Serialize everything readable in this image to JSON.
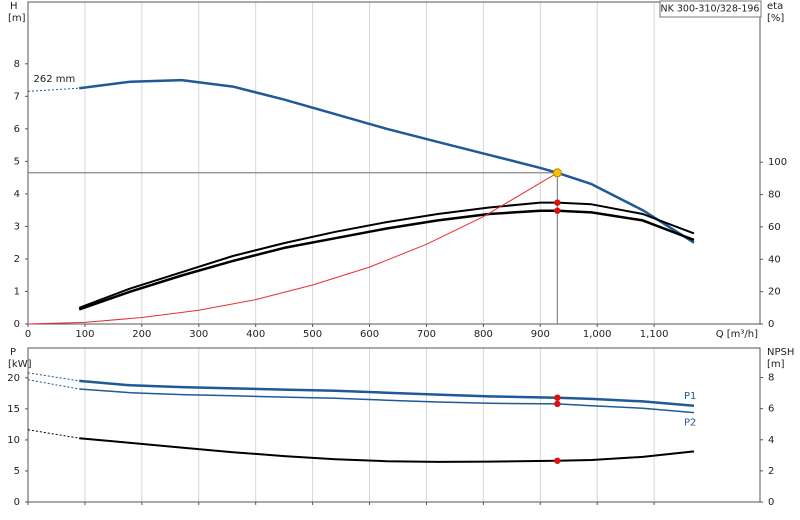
{
  "chart_data": [
    {
      "type": "line",
      "title": "NK 300-310/328-196",
      "y_label": "H",
      "y_unit": "[m]",
      "y2_label": "eta",
      "y2_unit": "[%]",
      "x_label": "Q [m³/h]",
      "xlim": [
        0,
        1286
      ],
      "ylim": [
        0,
        9.9
      ],
      "y2lim": [
        0,
        199
      ],
      "xticks": [
        0,
        100,
        200,
        300,
        400,
        500,
        600,
        700,
        800,
        900,
        {
          "value": 1000,
          "label": "1,000"
        },
        {
          "value": 1100,
          "label": "1,100"
        }
      ],
      "yticks": [
        0,
        1,
        2,
        3,
        4,
        5,
        6,
        7,
        8
      ],
      "y2ticks": [
        0,
        20,
        40,
        60,
        80,
        100
      ],
      "grid": true,
      "series": [
        {
          "color": "#1f5a96",
          "dashed": true,
          "x": [
            0,
            90
          ],
          "values": [
            7.15,
            7.25
          ]
        },
        {
          "name": "262 mm",
          "label_side": "start",
          "color": "#1f5a96",
          "width": 2.5,
          "x": [
            90,
            180,
            270,
            360,
            450,
            540,
            630,
            720,
            810,
            900,
            930,
            990,
            1080,
            1170
          ],
          "values": [
            7.25,
            7.45,
            7.5,
            7.3,
            6.9,
            6.45,
            6.0,
            5.6,
            5.2,
            4.8,
            4.65,
            4.3,
            3.5,
            2.5
          ]
        },
        {
          "color": "#000000",
          "width": 2,
          "axis": "y2",
          "x": [
            90,
            180,
            270,
            360,
            450,
            540,
            630,
            720,
            810,
            900,
            930,
            990,
            1080,
            1170
          ],
          "values": [
            10,
            22,
            32,
            42,
            50,
            57,
            63,
            68,
            72,
            75,
            75,
            74,
            68,
            56
          ]
        },
        {
          "color": "#000000",
          "width": 2.5,
          "axis": "y2",
          "x": [
            90,
            180,
            270,
            360,
            450,
            540,
            630,
            720,
            810,
            900,
            930,
            990,
            1080,
            1170
          ],
          "values": [
            9,
            20,
            30,
            39,
            47,
            53,
            59,
            64,
            68,
            70,
            70,
            69,
            64,
            52
          ]
        },
        {
          "color": "#e83030",
          "width": 1,
          "x": [
            0,
            100,
            200,
            300,
            400,
            500,
            600,
            700,
            800,
            930
          ],
          "values": [
            0,
            0.05,
            0.2,
            0.42,
            0.75,
            1.2,
            1.75,
            2.45,
            3.3,
            4.65
          ]
        }
      ],
      "operating_point": {
        "x": 930,
        "value": 4.65,
        "color": "#f5c400"
      },
      "markers": [
        {
          "x": 930,
          "value": 75,
          "axis": "y2",
          "color": "#e01010"
        },
        {
          "x": 930,
          "value": 70,
          "axis": "y2",
          "color": "#e01010"
        }
      ]
    },
    {
      "type": "line",
      "y_label": "P",
      "y_unit": "[kW]",
      "y2_label": "NPSH",
      "y2_unit": "[m]",
      "xlim": [
        0,
        1286
      ],
      "ylim": [
        0,
        24.8
      ],
      "y2lim": [
        0,
        9.9
      ],
      "xticks": [
        0,
        100,
        200,
        300,
        400,
        500,
        600,
        700,
        800,
        900,
        1000,
        1100
      ],
      "yticks": [
        0,
        5,
        10,
        15,
        20
      ],
      "y2ticks": [
        0,
        2,
        4,
        6,
        8
      ],
      "grid": true,
      "series": [
        {
          "color": "#1f5a96",
          "dashed": true,
          "x": [
            0,
            90
          ],
          "values": [
            20.8,
            19.5
          ]
        },
        {
          "name": "P1",
          "label_side": "end",
          "color": "#1f5a96",
          "width": 2.5,
          "x": [
            90,
            180,
            270,
            360,
            450,
            540,
            630,
            720,
            810,
            930,
            990,
            1080,
            1170
          ],
          "values": [
            19.5,
            18.8,
            18.5,
            18.3,
            18.1,
            17.9,
            17.6,
            17.3,
            17.0,
            16.8,
            16.6,
            16.2,
            15.5
          ]
        },
        {
          "color": "#1f5a96",
          "dashed": true,
          "x": [
            0,
            90
          ],
          "values": [
            19.7,
            18.2
          ]
        },
        {
          "name": "P2",
          "label_side": "end",
          "color": "#1f5a96",
          "width": 1.5,
          "x": [
            90,
            180,
            270,
            360,
            450,
            540,
            630,
            720,
            810,
            930,
            990,
            1080,
            1170
          ],
          "values": [
            18.2,
            17.6,
            17.3,
            17.1,
            16.9,
            16.7,
            16.4,
            16.1,
            15.9,
            15.8,
            15.5,
            15.1,
            14.4
          ]
        },
        {
          "color": "#000000",
          "dashed": true,
          "axis": "y2",
          "x": [
            0,
            90
          ],
          "values": [
            4.65,
            4.1
          ]
        },
        {
          "color": "#000000",
          "width": 2,
          "axis": "y2",
          "x": [
            90,
            180,
            270,
            360,
            450,
            540,
            630,
            720,
            810,
            930,
            990,
            1080,
            1170
          ],
          "values": [
            4.1,
            3.8,
            3.5,
            3.2,
            2.95,
            2.75,
            2.62,
            2.58,
            2.6,
            2.65,
            2.7,
            2.9,
            3.25
          ]
        }
      ],
      "markers": [
        {
          "x": 930,
          "value": 16.8,
          "color": "#e01010"
        },
        {
          "x": 930,
          "value": 15.8,
          "color": "#e01010"
        },
        {
          "x": 930,
          "value": 2.65,
          "axis": "y2",
          "color": "#e01010"
        }
      ]
    }
  ]
}
